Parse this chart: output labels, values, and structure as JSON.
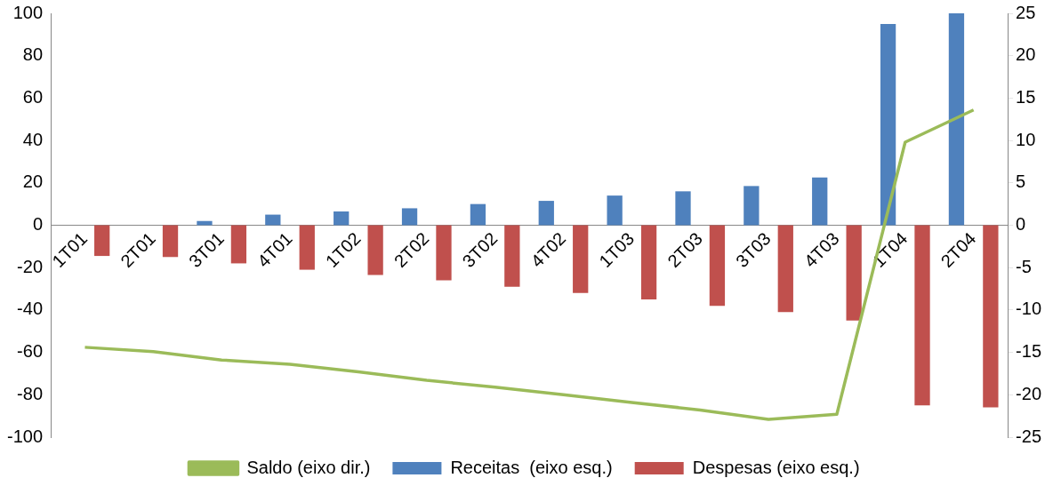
{
  "chart_data": {
    "type": "bar",
    "categories": [
      "1T01",
      "2T01",
      "3T01",
      "4T01",
      "1T02",
      "2T02",
      "3T02",
      "4T02",
      "1T03",
      "2T03",
      "3T03",
      "4T03",
      "1T04",
      "2T04"
    ],
    "series": [
      {
        "name": "Receitas  (eixo esq.)",
        "color": "#4f81bd",
        "values": [
          0,
          0,
          2,
          5,
          6.5,
          8,
          10,
          11.5,
          14,
          16,
          18.5,
          22.5,
          95,
          100
        ]
      },
      {
        "name": "Despesas (eixo esq.)",
        "color": "#c0504d",
        "values": [
          -14.5,
          -15,
          -18,
          -21,
          -23.5,
          -26,
          -29,
          -32,
          -35,
          -38,
          -41,
          -45,
          -85,
          -86
        ]
      },
      {
        "name": "Saldo (eixo dir.)",
        "type": "line",
        "axis": "y2",
        "color": "#9bbb59",
        "values": [
          -14.4,
          -14.9,
          -15.9,
          -16.4,
          -17.3,
          -18.3,
          -19.1,
          -20,
          -20.9,
          -21.8,
          -22.9,
          -22.3,
          9.8,
          13.6
        ]
      }
    ],
    "ylim": [
      -100,
      100
    ],
    "yticks": [
      -100,
      -80,
      -60,
      -40,
      -20,
      0,
      20,
      40,
      60,
      80,
      100
    ],
    "y2lim": [
      -25,
      25
    ],
    "y2ticks": [
      -25,
      -20,
      -15,
      -10,
      -5,
      0,
      5,
      10,
      15,
      20,
      25
    ],
    "grid": false,
    "legend": "bottom",
    "marker": "none"
  }
}
